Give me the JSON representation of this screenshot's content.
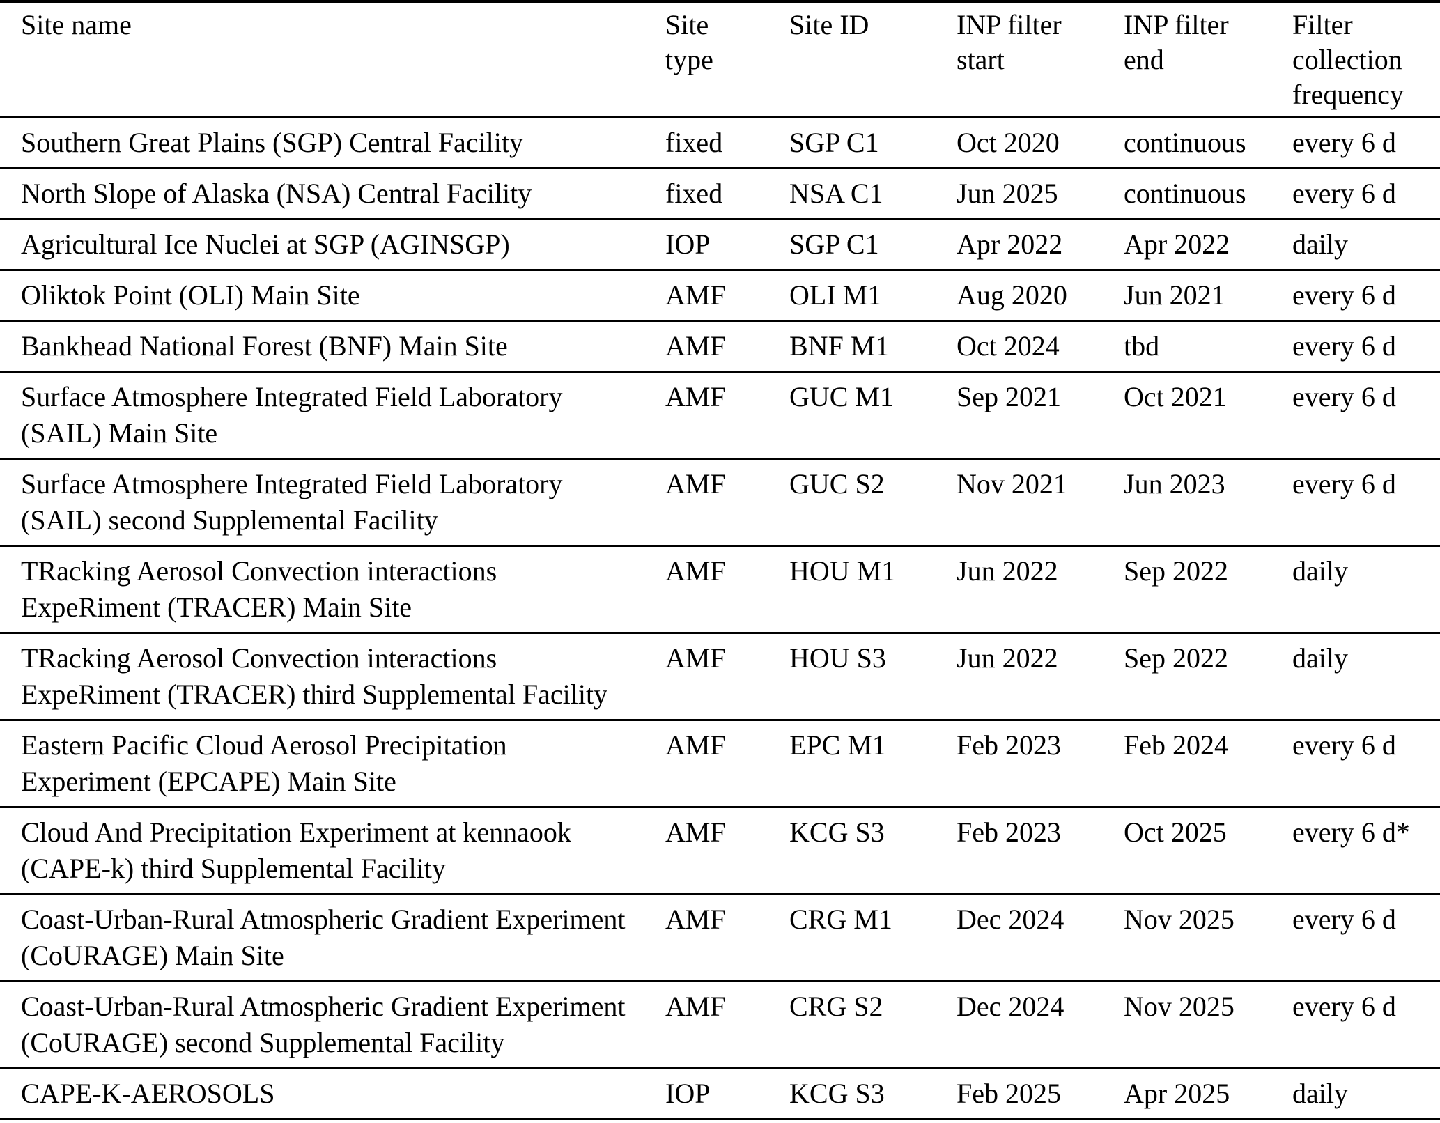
{
  "table": {
    "headers": [
      "Site name",
      "Site\ntype",
      "Site ID",
      "INP filter\nstart",
      "INP filter\nend",
      "Filter\ncollection\nfrequency"
    ],
    "rows": [
      {
        "cells": [
          "Southern Great Plains (SGP) Central Facility",
          "fixed",
          "SGP C1",
          "Oct 2020",
          "continuous",
          "every 6 d"
        ]
      },
      {
        "cells": [
          "North Slope of Alaska (NSA) Central Facility",
          "fixed",
          "NSA C1",
          "Jun 2025",
          "continuous",
          "every 6 d"
        ]
      },
      {
        "cells": [
          "Agricultural Ice Nuclei at SGP (AGINSGP)",
          "IOP",
          "SGP C1",
          "Apr 2022",
          "Apr 2022",
          "daily"
        ]
      },
      {
        "cells": [
          "Oliktok Point (OLI) Main Site",
          "AMF",
          "OLI M1",
          "Aug 2020",
          "Jun 2021",
          "every 6 d"
        ]
      },
      {
        "cells": [
          "Bankhead National Forest (BNF) Main Site",
          "AMF",
          "BNF M1",
          "Oct 2024",
          "tbd",
          "every 6 d"
        ]
      },
      {
        "cells": [
          "Surface Atmosphere Integrated Field Laboratory\n(SAIL) Main Site",
          "AMF",
          "GUC M1",
          "Sep 2021",
          "Oct 2021",
          "every 6 d"
        ]
      },
      {
        "cells": [
          "Surface Atmosphere Integrated Field Laboratory\n(SAIL) second Supplemental Facility",
          "AMF",
          "GUC S2",
          "Nov 2021",
          "Jun 2023",
          "every 6 d"
        ]
      },
      {
        "cells": [
          "TRacking Aerosol Convection interactions\nExpeRiment (TRACER) Main Site",
          "AMF",
          "HOU M1",
          "Jun 2022",
          "Sep 2022",
          "daily"
        ]
      },
      {
        "cells": [
          "TRacking Aerosol Convection interactions\nExpeRiment (TRACER) third Supplemental Facility",
          "AMF",
          "HOU S3",
          "Jun 2022",
          "Sep 2022",
          "daily"
        ]
      },
      {
        "cells": [
          "Eastern Pacific Cloud Aerosol Precipitation\nExperiment (EPCAPE) Main Site",
          "AMF",
          "EPC M1",
          "Feb 2023",
          "Feb 2024",
          "every 6 d"
        ]
      },
      {
        "cells": [
          "Cloud And Precipitation Experiment at kennaook\n(CAPE-k) third Supplemental Facility",
          "AMF",
          "KCG S3",
          "Feb 2023",
          "Oct 2025",
          "every 6 d*"
        ]
      },
      {
        "cells": [
          "Coast-Urban-Rural Atmospheric Gradient Experiment\n(CoURAGE) Main Site",
          "AMF",
          "CRG M1",
          "Dec 2024",
          "Nov 2025",
          "every 6 d"
        ]
      },
      {
        "cells": [
          "Coast-Urban-Rural Atmospheric Gradient Experiment\n(CoURAGE) second Supplemental Facility",
          "AMF",
          "CRG S2",
          "Dec 2024",
          "Nov 2025",
          "every 6 d"
        ]
      },
      {
        "cells": [
          "CAPE-K-AEROSOLS",
          "IOP",
          "KCG S3",
          "Feb 2025",
          "Apr 2025",
          "daily"
        ]
      }
    ]
  }
}
